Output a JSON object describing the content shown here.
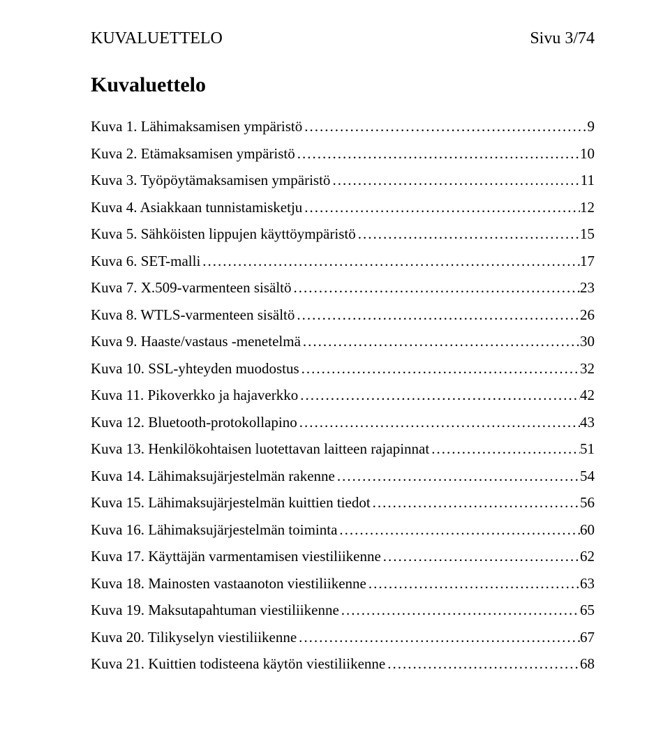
{
  "header": {
    "left": "KUVALUETTELO",
    "right": "Sivu 3/74"
  },
  "title": "Kuvaluettelo",
  "toc": [
    {
      "text": "Kuva 1. Lähimaksamisen ympäristö",
      "page": "9"
    },
    {
      "text": "Kuva 2. Etämaksamisen ympäristö",
      "page": "10"
    },
    {
      "text": "Kuva 3. Työpöytämaksamisen ympäristö",
      "page": "11"
    },
    {
      "text": "Kuva 4. Asiakkaan tunnistamisketju",
      "page": "12"
    },
    {
      "text": "Kuva 5. Sähköisten lippujen käyttöympäristö",
      "page": "15"
    },
    {
      "text": "Kuva 6. SET-malli",
      "page": "17"
    },
    {
      "text": "Kuva 7. X.509-varmenteen sisältö",
      "page": "23"
    },
    {
      "text": "Kuva 8. WTLS-varmenteen sisältö",
      "page": "26"
    },
    {
      "text": "Kuva 9. Haaste/vastaus -menetelmä",
      "page": "30"
    },
    {
      "text": "Kuva 10. SSL-yhteyden muodostus",
      "page": "32"
    },
    {
      "text": "Kuva 11. Pikoverkko ja hajaverkko",
      "page": "42"
    },
    {
      "text": "Kuva 12. Bluetooth-protokollapino",
      "page": "43"
    },
    {
      "text": "Kuva 13. Henkilökohtaisen luotettavan laitteen rajapinnat",
      "page": "51"
    },
    {
      "text": "Kuva 14. Lähimaksujärjestelmän rakenne",
      "page": "54"
    },
    {
      "text": "Kuva 15. Lähimaksujärjestelmän kuittien tiedot",
      "page": "56"
    },
    {
      "text": "Kuva 16. Lähimaksujärjestelmän toiminta",
      "page": "60"
    },
    {
      "text": "Kuva 17. Käyttäjän varmentamisen viestiliikenne",
      "page": "62"
    },
    {
      "text": "Kuva 18. Mainosten vastaanoton viestiliikenne",
      "page": "63"
    },
    {
      "text": "Kuva 19. Maksutapahtuman viestiliikenne",
      "page": "65"
    },
    {
      "text": "Kuva 20. Tilikyselyn viestiliikenne",
      "page": "67"
    },
    {
      "text": "Kuva 21. Kuittien todisteena käytön viestiliikenne",
      "page": "68"
    }
  ]
}
